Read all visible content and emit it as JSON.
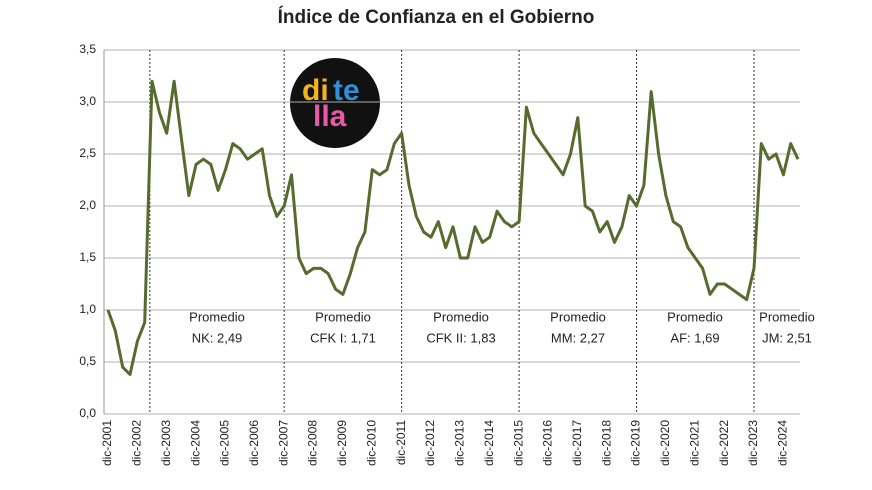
{
  "chart_data": {
    "type": "line",
    "title": "Índice de Confianza en el Gobierno",
    "categories": [
      "dic-2001",
      null,
      null,
      null,
      "dic-2002",
      null,
      null,
      null,
      "dic-2003",
      null,
      null,
      null,
      "dic-2004",
      null,
      null,
      null,
      "dic-2005",
      null,
      null,
      null,
      "dic-2006",
      null,
      null,
      null,
      "dic-2007",
      null,
      null,
      null,
      "dic-2008",
      null,
      null,
      null,
      "dic-2009",
      null,
      null,
      null,
      "dic-2010",
      null,
      null,
      null,
      "dic-2011",
      null,
      null,
      null,
      "dic-2012",
      null,
      null,
      null,
      "dic-2013",
      null,
      null,
      null,
      "dic-2014",
      null,
      null,
      null,
      "dic-2015",
      null,
      null,
      null,
      "dic-2016",
      null,
      null,
      null,
      "dic-2017",
      null,
      null,
      null,
      "dic-2018",
      null,
      null,
      null,
      "dic-2019",
      null,
      null,
      null,
      "dic-2020",
      null,
      null,
      null,
      "dic-2021",
      null,
      null,
      null,
      "dic-2022",
      null,
      null,
      null,
      "dic-2023",
      null,
      null,
      null,
      "dic-2024",
      null,
      null
    ],
    "values": [
      1.0,
      0.8,
      0.45,
      0.38,
      0.7,
      0.88,
      3.2,
      2.9,
      2.7,
      3.2,
      2.65,
      2.1,
      2.4,
      2.45,
      2.4,
      2.15,
      2.35,
      2.6,
      2.55,
      2.45,
      2.5,
      2.55,
      2.1,
      1.9,
      2.0,
      2.3,
      1.5,
      1.35,
      1.4,
      1.4,
      1.35,
      1.2,
      1.15,
      1.35,
      1.6,
      1.75,
      2.35,
      2.3,
      2.35,
      2.6,
      2.7,
      2.2,
      1.9,
      1.75,
      1.7,
      1.85,
      1.6,
      1.8,
      1.5,
      1.5,
      1.8,
      1.65,
      1.7,
      1.95,
      1.85,
      1.8,
      1.85,
      2.95,
      2.7,
      2.6,
      2.5,
      2.4,
      2.3,
      2.5,
      2.85,
      2.0,
      1.95,
      1.75,
      1.85,
      1.65,
      1.8,
      2.1,
      2.0,
      2.2,
      3.1,
      2.5,
      2.1,
      1.85,
      1.8,
      1.6,
      1.5,
      1.4,
      1.15,
      1.25,
      1.25,
      1.2,
      1.15,
      1.1,
      1.4,
      2.6,
      2.45,
      2.5,
      2.3,
      2.6,
      2.45
    ],
    "color": "#576b2e",
    "ylim": [
      0,
      3.5
    ],
    "yticks": [
      {
        "value": 0,
        "label": "0,0"
      },
      {
        "value": 0.5,
        "label": "0,5"
      },
      {
        "value": 1,
        "label": "1,0"
      },
      {
        "value": 1.5,
        "label": "1,5"
      },
      {
        "value": 2,
        "label": "2,0"
      },
      {
        "value": 2.5,
        "label": "2,5"
      },
      {
        "value": 3,
        "label": "3,0"
      },
      {
        "value": 3.5,
        "label": "3,5"
      }
    ],
    "grid": true,
    "annotations": [
      [
        "Promedio",
        "NK: 2,49"
      ],
      [
        "Promedio",
        "CFK I: 1,71"
      ],
      [
        "Promedio",
        "CFK II: 1,83"
      ],
      [
        "Promedio",
        "MM: 2,27"
      ],
      [
        "Promedio",
        "AF: 1,69"
      ],
      [
        "Promedio",
        "JM: 2,51"
      ]
    ],
    "logo": [
      "di",
      "te",
      "lla"
    ]
  }
}
